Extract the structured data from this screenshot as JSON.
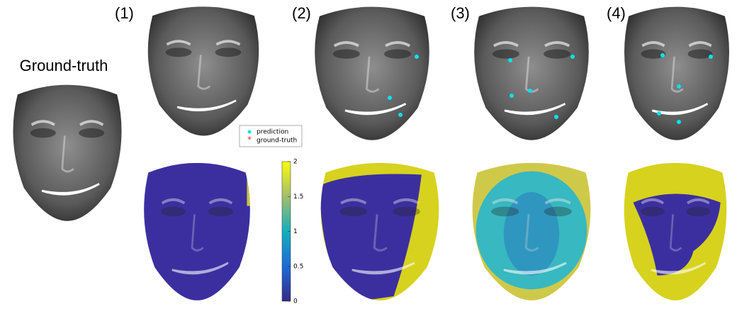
{
  "title": "Ground-truth",
  "panels": [
    {
      "label": "(1)"
    },
    {
      "label": "(2)"
    },
    {
      "label": "(3)"
    },
    {
      "label": "(4)"
    }
  ],
  "legend": {
    "items": [
      {
        "label": "prediction",
        "color": "#00e5ee"
      },
      {
        "label": "ground-truth",
        "color": "#d62728"
      }
    ]
  },
  "colorbar": {
    "lim": [
      0,
      2
    ],
    "ticks": [
      0,
      0.5,
      1,
      1.5,
      2
    ]
  }
}
